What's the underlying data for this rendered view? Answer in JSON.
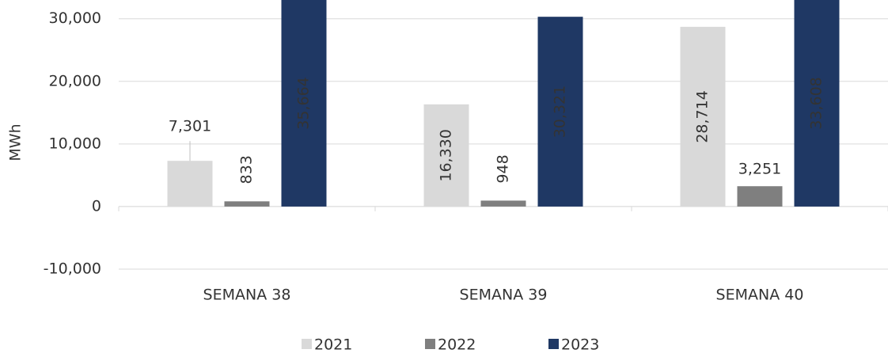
{
  "chart_data": {
    "type": "bar",
    "y_label": "MWh",
    "categories": [
      "SEMANA 38",
      "SEMANA 39",
      "SEMANA 40"
    ],
    "series": [
      {
        "name": "2021",
        "color": "#d9d9d9",
        "values": [
          7301,
          16330,
          28714
        ],
        "value_labels": [
          "7,301",
          "16,330",
          "28,714"
        ]
      },
      {
        "name": "2022",
        "color": "#7f7f7f",
        "values": [
          833,
          948,
          3251
        ],
        "value_labels": [
          "833",
          "948",
          "3,251"
        ]
      },
      {
        "name": "2023",
        "color": "#1f3864",
        "values": [
          35664,
          30321,
          33608
        ],
        "value_labels": [
          "35,664",
          "30,321",
          "33,608"
        ]
      }
    ],
    "ylim": [
      -10000,
      33000
    ],
    "yticks": [
      {
        "value": -10000,
        "label": "-10,000"
      },
      0,
      {
        "value": 10000,
        "label": "10,000"
      },
      {
        "value": 20000,
        "label": "20,000"
      },
      {
        "value": 30000,
        "label": "30,000"
      }
    ],
    "grid": true,
    "legend": "bottom"
  }
}
